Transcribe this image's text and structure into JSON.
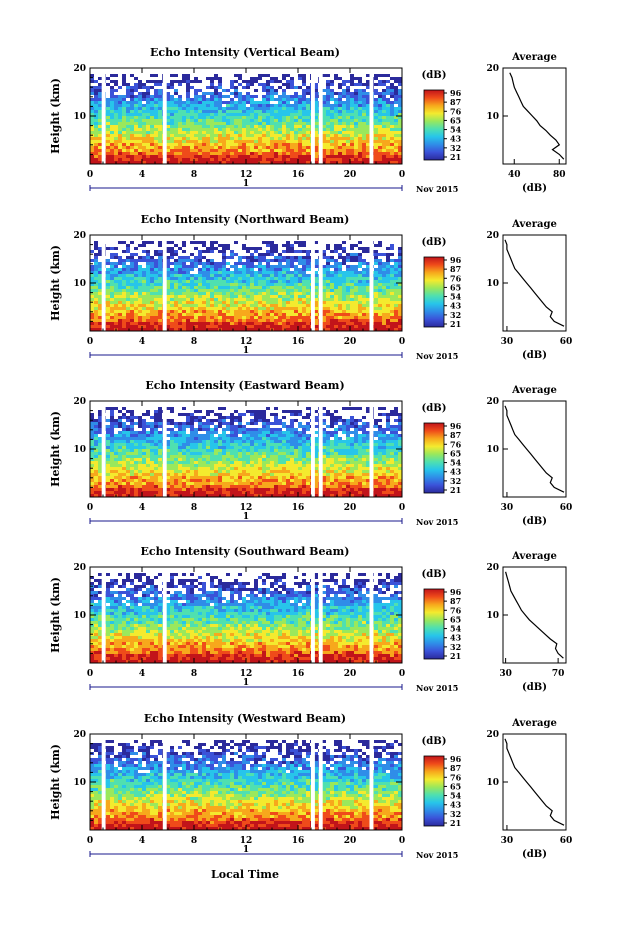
{
  "common": {
    "x_ticks": [
      "0",
      "4",
      "8",
      "12",
      "16",
      "20",
      "0"
    ],
    "x_range_hours": [
      0,
      24
    ],
    "y_ticks": [
      "10",
      "20"
    ],
    "y_range_km": [
      0,
      20
    ],
    "ylabel": "Height (km)",
    "date_day": "1",
    "date_month": "Nov 2015",
    "avg_title": "Average",
    "avg_xlabel": "(dB)",
    "cb_unit": "(dB)",
    "colormap": [
      "#2b2a9c",
      "#3b52d8",
      "#2f8de8",
      "#27c5ea",
      "#4fe0b0",
      "#9ae85c",
      "#f4ea2e",
      "#f7a81c",
      "#ef4b1a",
      "#c2141a"
    ],
    "xlabel_bottom": "Local Time",
    "data_gaps_hours": [
      [
        0.9,
        1.2
      ],
      [
        5.6,
        5.9
      ],
      [
        17.0,
        17.3
      ],
      [
        17.6,
        17.9
      ],
      [
        21.5,
        21.8
      ]
    ]
  },
  "chart_data": [
    {
      "type": "heatmap",
      "title": "Echo Intensity (Vertical Beam)",
      "colorbar_ticks": [
        "96",
        "87",
        "76",
        "65",
        "54",
        "43",
        "32",
        "21"
      ],
      "avg_xticks": [
        "40",
        "80"
      ],
      "avg_xlim": [
        30,
        86
      ],
      "avg_profile": {
        "height_km": [
          1,
          2,
          3,
          4,
          5,
          6,
          7,
          8,
          9,
          10,
          11,
          12,
          13,
          14,
          15,
          16,
          17,
          18,
          19
        ],
        "db": [
          84,
          80,
          74,
          80,
          77,
          72,
          68,
          63,
          60,
          56,
          52,
          48,
          46,
          44,
          42,
          40,
          39,
          38,
          36
        ]
      }
    },
    {
      "type": "heatmap",
      "title": "Echo Intensity (Northward Beam)",
      "colorbar_ticks": [
        "96",
        "87",
        "76",
        "65",
        "54",
        "43",
        "32",
        "21"
      ],
      "avg_xticks": [
        "30",
        "60"
      ],
      "avg_xlim": [
        28,
        60
      ],
      "avg_profile": {
        "height_km": [
          1,
          2,
          3,
          4,
          5,
          6,
          7,
          8,
          9,
          10,
          11,
          12,
          13,
          14,
          15,
          16,
          17,
          18,
          19
        ],
        "db": [
          59,
          54,
          52,
          53,
          50,
          48,
          46,
          44,
          42,
          40,
          38,
          36,
          34,
          33,
          32,
          31,
          30,
          30,
          29
        ]
      }
    },
    {
      "type": "heatmap",
      "title": "Echo Intensity (Eastward Beam)",
      "colorbar_ticks": [
        "96",
        "87",
        "76",
        "65",
        "54",
        "43",
        "32",
        "21"
      ],
      "avg_xticks": [
        "30",
        "60"
      ],
      "avg_xlim": [
        28,
        60
      ],
      "avg_profile": {
        "height_km": [
          1,
          2,
          3,
          4,
          5,
          6,
          7,
          8,
          9,
          10,
          11,
          12,
          13,
          14,
          15,
          16,
          17,
          18,
          19
        ],
        "db": [
          59,
          54,
          52,
          53,
          50,
          48,
          46,
          44,
          42,
          40,
          38,
          36,
          34,
          33,
          32,
          31,
          30,
          30,
          29
        ]
      }
    },
    {
      "type": "heatmap",
      "title": "Echo Intensity (Southward Beam)",
      "colorbar_ticks": [
        "96",
        "87",
        "76",
        "65",
        "54",
        "43",
        "32",
        "21"
      ],
      "avg_xticks": [
        "30",
        "70"
      ],
      "avg_xlim": [
        28,
        76
      ],
      "avg_profile": {
        "height_km": [
          1,
          2,
          3,
          4,
          5,
          6,
          7,
          8,
          9,
          10,
          11,
          12,
          13,
          14,
          15,
          16,
          17,
          18,
          19
        ],
        "db": [
          74,
          70,
          68,
          69,
          64,
          60,
          56,
          52,
          48,
          45,
          42,
          40,
          38,
          36,
          34,
          33,
          32,
          31,
          30
        ]
      }
    },
    {
      "type": "heatmap",
      "title": "Echo Intensity (Westward Beam)",
      "colorbar_ticks": [
        "96",
        "87",
        "76",
        "65",
        "54",
        "43",
        "32",
        "21"
      ],
      "avg_xticks": [
        "30",
        "60"
      ],
      "avg_xlim": [
        28,
        60
      ],
      "avg_profile": {
        "height_km": [
          1,
          2,
          3,
          4,
          5,
          6,
          7,
          8,
          9,
          10,
          11,
          12,
          13,
          14,
          15,
          16,
          17,
          18,
          19
        ],
        "db": [
          59,
          54,
          52,
          53,
          50,
          48,
          46,
          44,
          42,
          40,
          38,
          36,
          34,
          33,
          32,
          31,
          30,
          30,
          29
        ]
      }
    }
  ]
}
